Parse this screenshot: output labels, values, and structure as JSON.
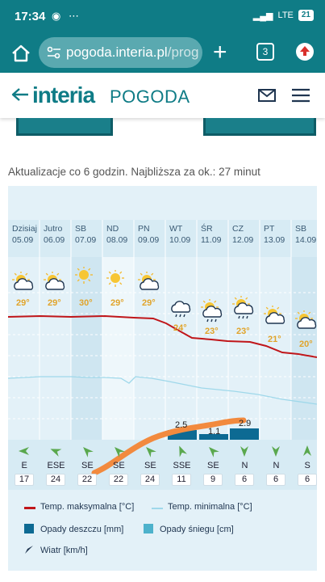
{
  "status": {
    "time": "17:34",
    "signal_text": "LTE",
    "battery": "21"
  },
  "browser": {
    "url_main": "pogoda.interia.pl",
    "url_rest": "/prog",
    "tab_count": "3"
  },
  "site": {
    "logo": "interia",
    "section": "POGODA"
  },
  "update_info": "Aktualizacje co 6 godzin. Najbliższa za ok.: 27 minut",
  "days": [
    {
      "name": "Dzisiaj",
      "date": "05.09",
      "max": "29°",
      "wind_dir": "E",
      "wind_speed": "17",
      "icon": "sun-cloud"
    },
    {
      "name": "Jutro",
      "date": "06.09",
      "max": "29°",
      "wind_dir": "ESE",
      "wind_speed": "24",
      "icon": "sun-cloud"
    },
    {
      "name": "SB",
      "date": "07.09",
      "max": "30°",
      "wind_dir": "SE",
      "wind_speed": "22",
      "icon": "sun"
    },
    {
      "name": "ND",
      "date": "08.09",
      "max": "29°",
      "wind_dir": "SE",
      "wind_speed": "22",
      "icon": "sun"
    },
    {
      "name": "PN",
      "date": "09.09",
      "max": "29°",
      "wind_dir": "SE",
      "wind_speed": "24",
      "icon": "sun-cloud"
    },
    {
      "name": "WT",
      "date": "10.09",
      "max": "24°",
      "wind_dir": "SSE",
      "wind_speed": "11",
      "icon": "rain-cloud"
    },
    {
      "name": "ŚR",
      "date": "11.09",
      "max": "23°",
      "wind_dir": "SE",
      "wind_speed": "9",
      "icon": "sun-cloud-rain"
    },
    {
      "name": "CZ",
      "date": "12.09",
      "max": "23°",
      "wind_dir": "N",
      "wind_speed": "6",
      "icon": "sun-cloud-rain"
    },
    {
      "name": "PT",
      "date": "13.09",
      "max": "21°",
      "wind_dir": "N",
      "wind_speed": "6",
      "icon": "sun-cloud"
    },
    {
      "name": "SB",
      "date": "14.09",
      "max": "20°",
      "wind_dir": "S",
      "wind_speed": "6",
      "icon": "sun-cloud"
    }
  ],
  "precip_labels": {
    "wt": "2.5",
    "sr": "1.1",
    "cz": "2.9"
  },
  "legend": {
    "max_temp": "Temp. maksymalna [°C]",
    "min_temp": "Temp. minimalna [°C]",
    "rain": "Opady deszczu [mm]",
    "snow": "Opady śniegu [cm]",
    "wind": "Wiatr [km/h]"
  },
  "colors": {
    "teal": "#0f7c86",
    "max_line": "#c0161a",
    "min_line": "#9fd8ea",
    "rain_bar": "#0d6a93",
    "snow_bar": "#4db2cc",
    "annotation": "#f28a3e",
    "temp_text": "#e1a42a"
  }
}
